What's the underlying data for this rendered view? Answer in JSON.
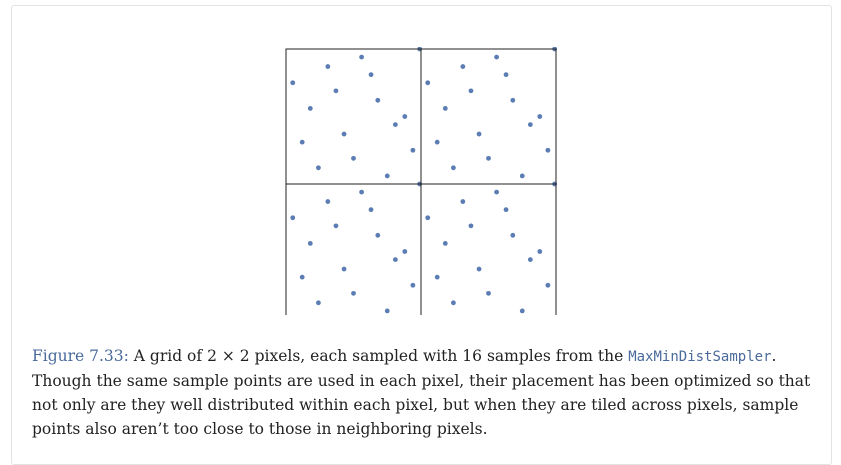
{
  "figure": {
    "grid": {
      "rows": 2,
      "cols": 2
    },
    "dot_color": "#5b7db3",
    "line_color": "#222222",
    "sample_points": [
      [
        0.05,
        0.25
      ],
      [
        0.18,
        0.44
      ],
      [
        0.31,
        0.13
      ],
      [
        0.43,
        0.63
      ],
      [
        0.56,
        0.06
      ],
      [
        0.68,
        0.38
      ],
      [
        0.81,
        0.56
      ],
      [
        0.94,
        0.75
      ],
      [
        0.12,
        0.69
      ],
      [
        0.24,
        0.88
      ],
      [
        0.37,
        0.31
      ],
      [
        0.5,
        0.81
      ],
      [
        0.63,
        0.19
      ],
      [
        0.75,
        0.94
      ],
      [
        0.88,
        0.5
      ],
      [
        0.99,
        0.0
      ]
    ]
  },
  "caption": {
    "label": "Figure 7.33:",
    "pre": " A grid of ",
    "math_a": "2",
    "math_times": " × ",
    "math_b": "2",
    "mid": " pixels, each sampled with 16 samples from the ",
    "code": "MaxMinDistSampler",
    "post": ". Though the same sample points are used in each pixel, their placement has been optimized so that not only are they well distributed within each pixel, but when they are tiled across pixels, sample points also aren’t too close to those in neighboring pixels."
  }
}
